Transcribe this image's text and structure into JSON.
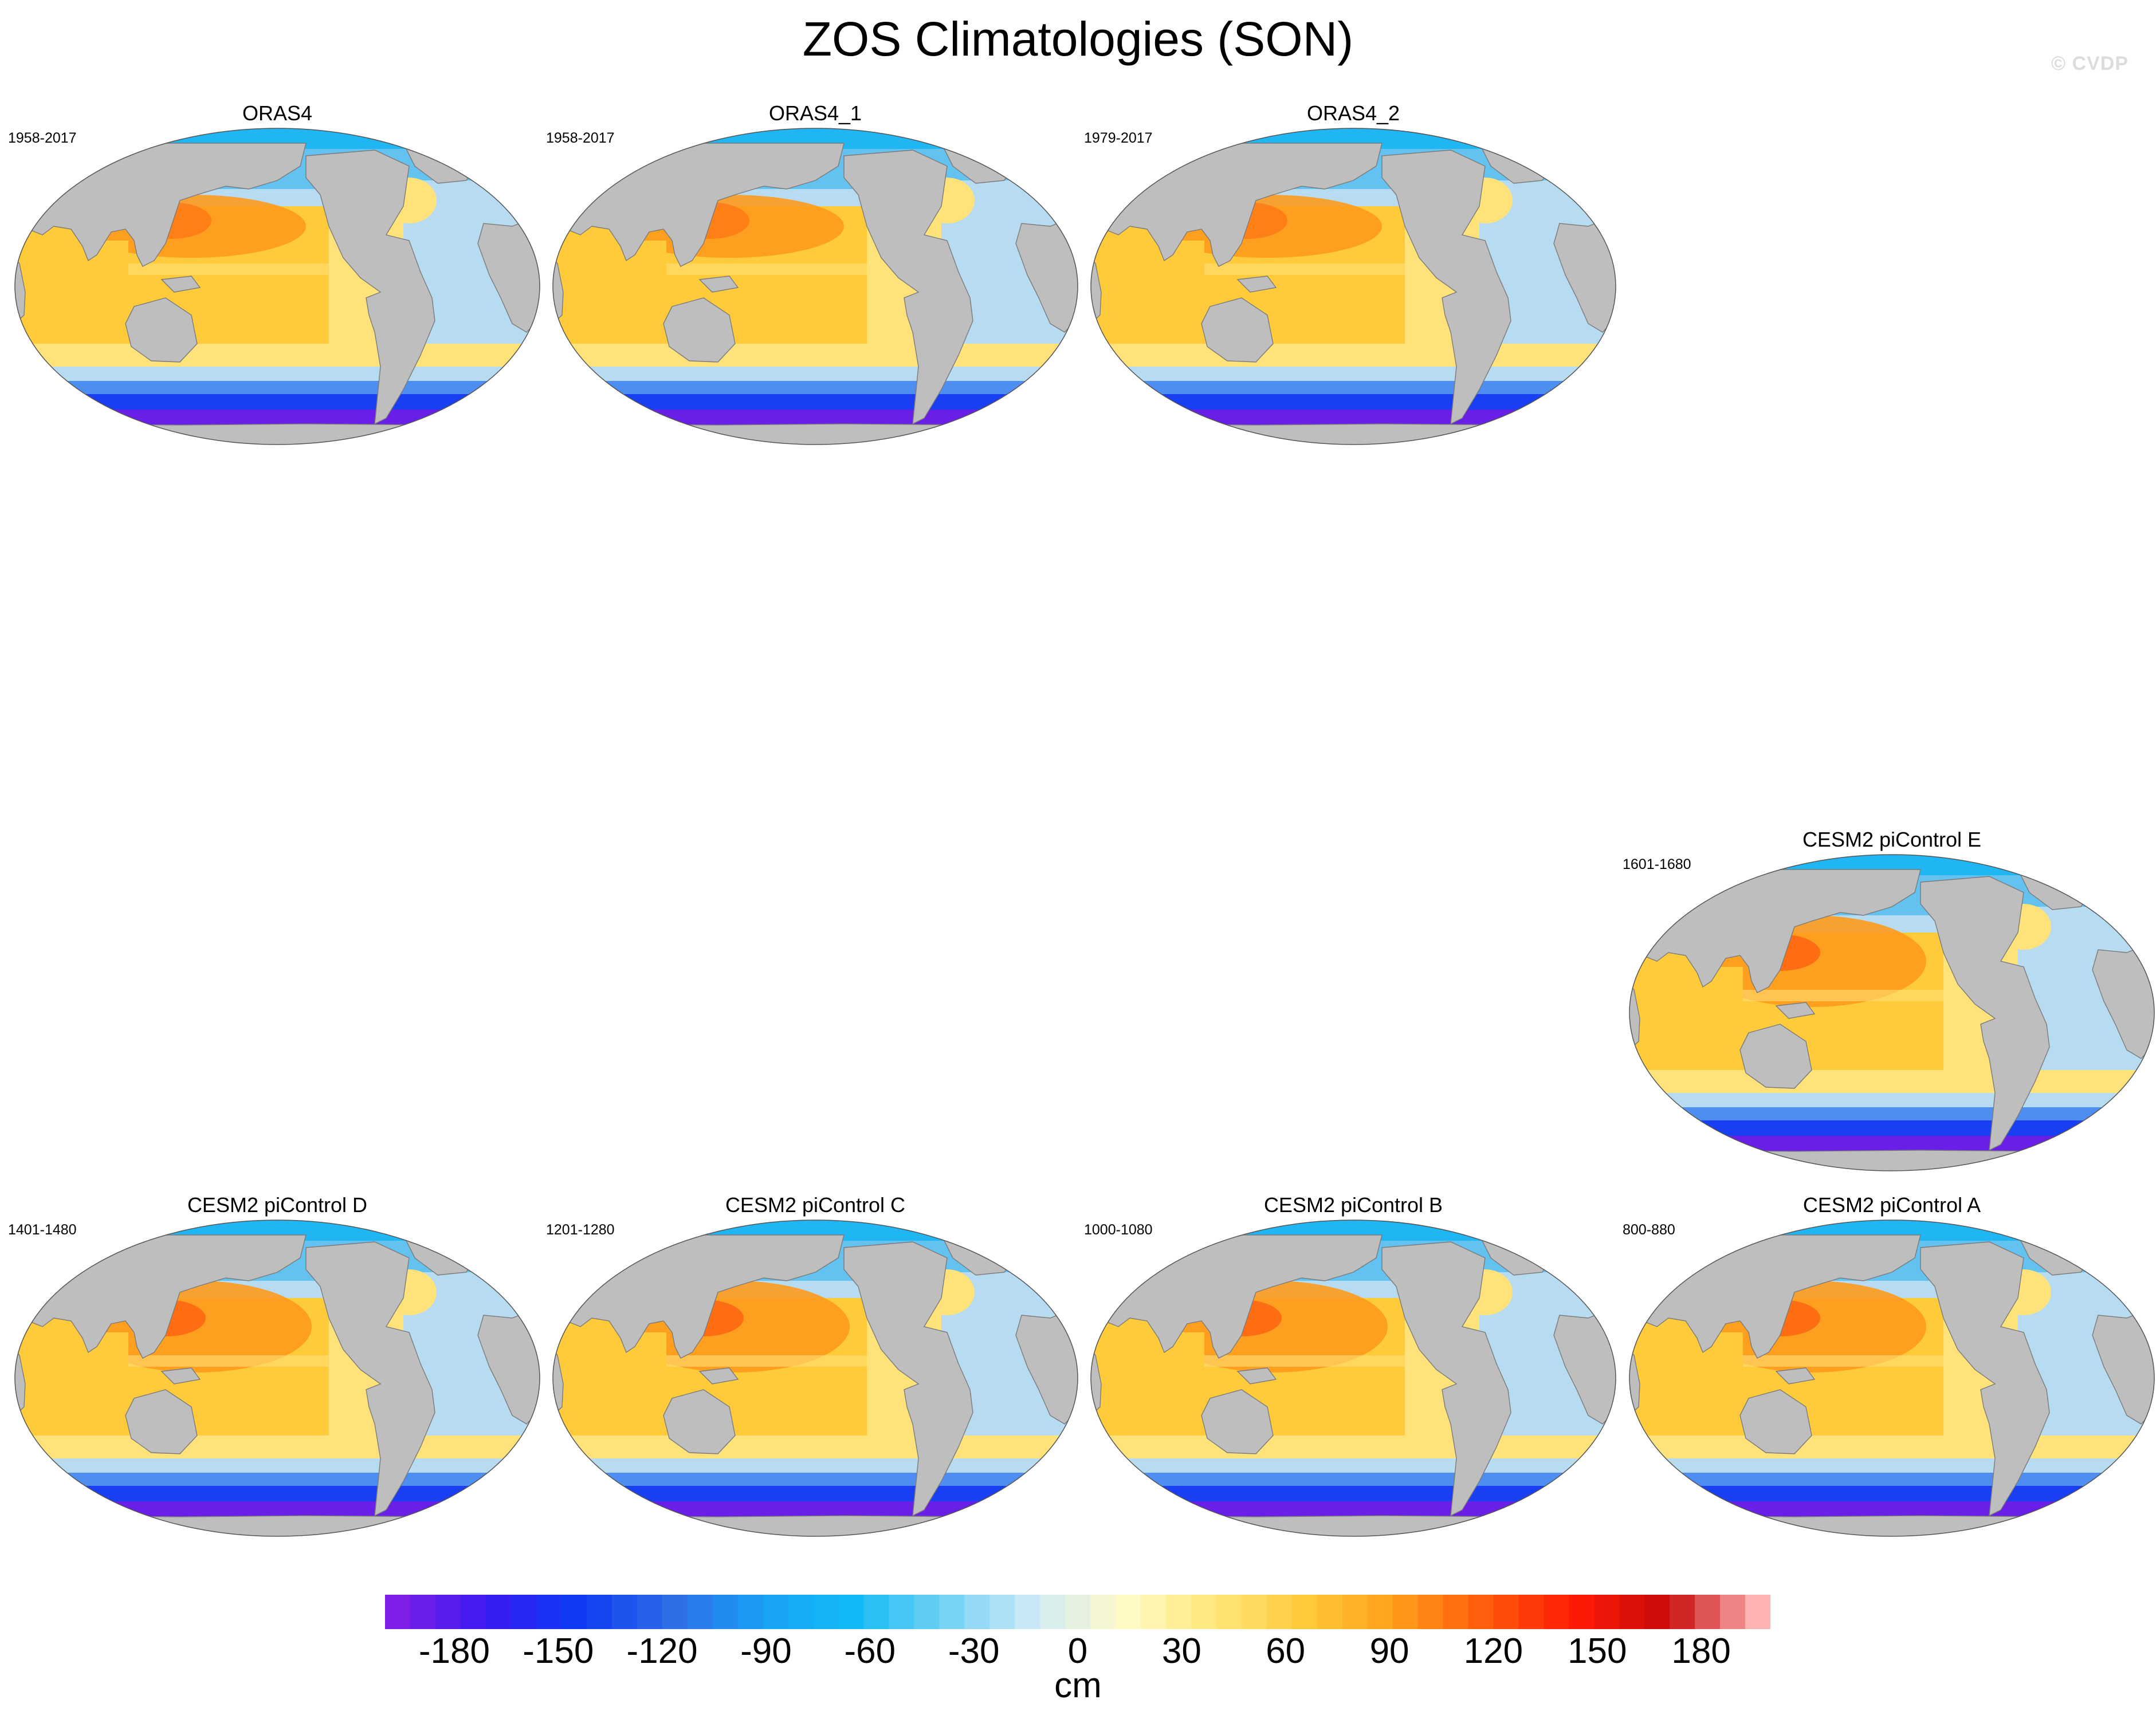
{
  "title": "ZOS Climatologies (SON)",
  "watermark": "© CVDP",
  "panels": [
    {
      "name": "ORAS4",
      "years": "1958-2017",
      "variant": "obs"
    },
    {
      "name": "ORAS4_1",
      "years": "1958-2017",
      "variant": "obs"
    },
    {
      "name": "ORAS4_2",
      "years": "1979-2017",
      "variant": "obs"
    },
    {
      "name": "CESM2 piControl E",
      "years": "1601-1680",
      "variant": "model"
    },
    {
      "name": "CESM2 piControl D",
      "years": "1401-1480",
      "variant": "model"
    },
    {
      "name": "CESM2 piControl C",
      "years": "1201-1280",
      "variant": "model"
    },
    {
      "name": "CESM2 piControl B",
      "years": "1000-1080",
      "variant": "model"
    },
    {
      "name": "CESM2 piControl A",
      "years": "800-880",
      "variant": "model"
    }
  ],
  "colorbar": {
    "units": "cm",
    "labels": [
      "-180",
      "-150",
      "-120",
      "-90",
      "-60",
      "-30",
      "0",
      "30",
      "60",
      "90",
      "120",
      "150",
      "180"
    ],
    "range": [
      -200,
      200
    ],
    "label_values": [
      -180,
      -150,
      -120,
      -90,
      -60,
      -30,
      0,
      30,
      60,
      90,
      120,
      150,
      180
    ],
    "bins": 55,
    "stops": [
      "#7e1ee8",
      "#3a1af0",
      "#0b3cf4",
      "#2f6be6",
      "#1a9ff5",
      "#10baf6",
      "#6fd0f4",
      "#cde9f6",
      "#fffbc8",
      "#ffe77a",
      "#ffc93a",
      "#ff9e1a",
      "#ff5a0a",
      "#ff1a05",
      "#c80a0a",
      "#ffb3b3"
    ]
  },
  "colors": {
    "land": "#bebebe",
    "coast": "#7a7a7a",
    "ocean_polar": "#1fb6f3",
    "ocean_north": "#64c2f0",
    "ocean_atlantic": "#b7dcf2",
    "ocean_trop_low": "#ffe27a",
    "ocean_trop": "#ffcb3a",
    "ocean_west_pacific": "#ff9a1e",
    "ocean_kuroshio": "#ff6a12",
    "southern_ocean_1": "#4d8ef0",
    "southern_ocean_2": "#1a3ef2",
    "southern_ocean_3": "#6a1fe8"
  }
}
